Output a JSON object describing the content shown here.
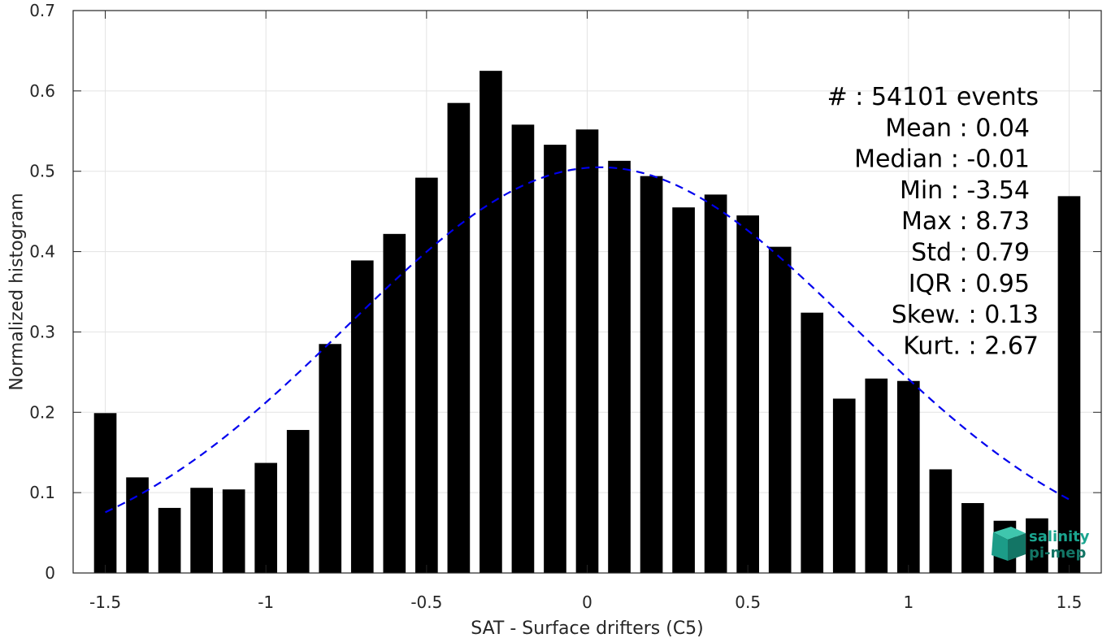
{
  "chart_data": {
    "type": "bar",
    "title": "",
    "xlabel": "SAT - Surface drifters (C5)",
    "ylabel": "Normalized histogram",
    "xlim": [
      -1.6,
      1.6
    ],
    "ylim": [
      0,
      0.7
    ],
    "x_ticks": [
      -1.5,
      -1,
      -0.5,
      0,
      0.5,
      1,
      1.5
    ],
    "x_tick_labels": [
      "-1.5",
      "-1",
      "-0.5",
      "0",
      "0.5",
      "1",
      "1.5"
    ],
    "y_ticks": [
      0,
      0.1,
      0.2,
      0.3,
      0.4,
      0.5,
      0.6,
      0.7
    ],
    "y_tick_labels": [
      "0",
      "0.1",
      "0.2",
      "0.3",
      "0.4",
      "0.5",
      "0.6",
      "0.7"
    ],
    "grid": true,
    "bar_color": "#000000",
    "bar_width": 0.07,
    "x": [
      -1.5,
      -1.4,
      -1.3,
      -1.2,
      -1.1,
      -1.0,
      -0.9,
      -0.8,
      -0.7,
      -0.6,
      -0.5,
      -0.4,
      -0.3,
      -0.2,
      -0.1,
      0.0,
      0.1,
      0.2,
      0.3,
      0.4,
      0.5,
      0.6,
      0.7,
      0.8,
      0.9,
      1.0,
      1.1,
      1.2,
      1.3,
      1.4,
      1.5
    ],
    "values": [
      0.199,
      0.119,
      0.081,
      0.106,
      0.104,
      0.137,
      0.178,
      0.285,
      0.389,
      0.422,
      0.492,
      0.585,
      0.625,
      0.558,
      0.533,
      0.552,
      0.513,
      0.494,
      0.455,
      0.471,
      0.445,
      0.406,
      0.324,
      0.217,
      0.242,
      0.239,
      0.129,
      0.087,
      0.065,
      0.068,
      0.469
    ],
    "fit": {
      "type": "line",
      "style": "dashed",
      "color": "#0000ee",
      "x_range": [
        -1.5,
        1.5
      ],
      "mean": 0.04,
      "std": 0.79
    },
    "annotations": [
      {
        "label": "#  : 54101 events"
      },
      {
        "label": "Mean : 0.04"
      },
      {
        "label": "Median : -0.01"
      },
      {
        "label": "Min : -3.54"
      },
      {
        "label": "Max : 8.73"
      },
      {
        "label": "Std : 0.79"
      },
      {
        "label": "IQR : 0.95"
      },
      {
        "label": "Skew. : 0.13"
      },
      {
        "label": "Kurt. : 2.67"
      }
    ]
  },
  "logo": {
    "line1": "salinity",
    "line2": "pi-mep",
    "color": "#1aa58f"
  }
}
